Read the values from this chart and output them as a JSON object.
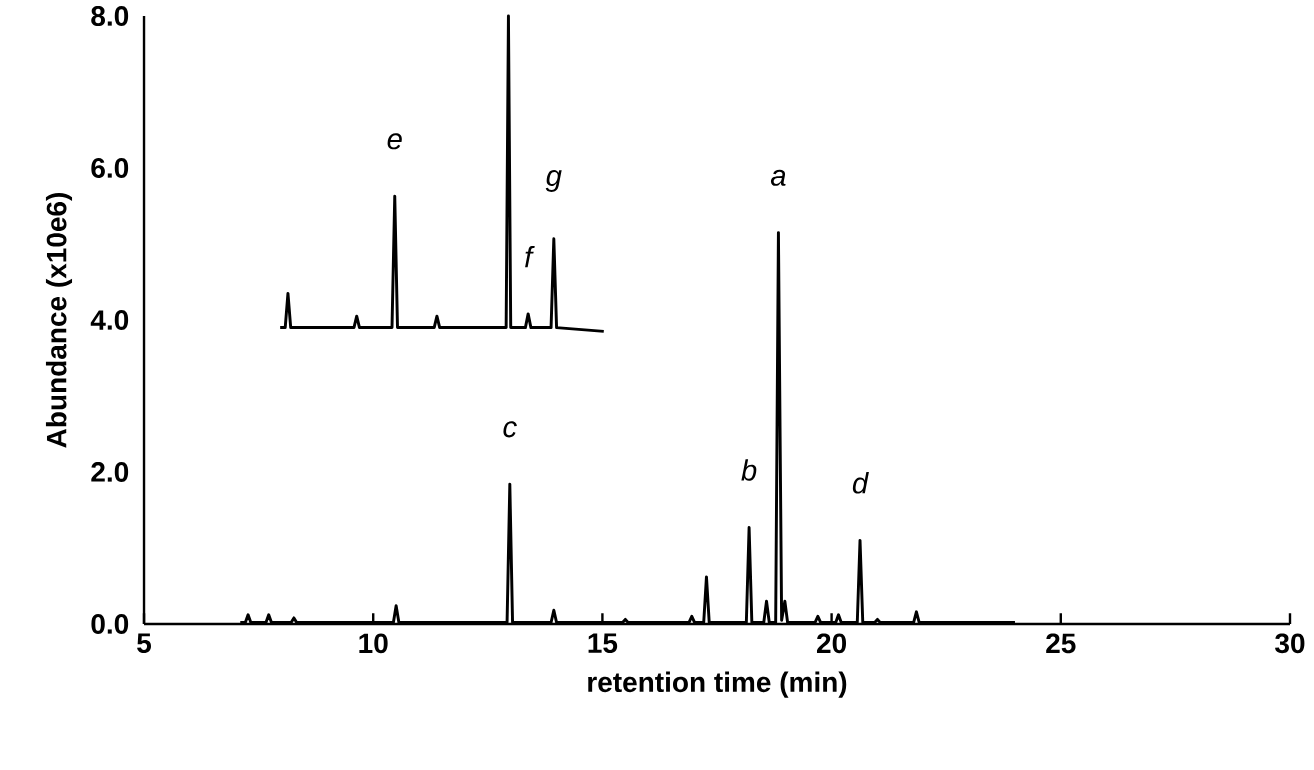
{
  "chart_data": {
    "type": "line",
    "xlabel": "retention time (min)",
    "ylabel": "Abundance (x10e6)",
    "xlim": [
      5,
      30
    ],
    "xticks": [
      5,
      10,
      15,
      20,
      25,
      30
    ],
    "ylim": [
      0,
      8
    ],
    "yticks": [
      {
        "value": 0,
        "label": "0.0"
      },
      {
        "value": 2,
        "label": "2.0"
      },
      {
        "value": 4,
        "label": "4.0"
      },
      {
        "value": 6,
        "label": "6.0"
      },
      {
        "value": 8,
        "label": "8.0"
      }
    ],
    "series": [
      {
        "color": "#000000",
        "x": [
          7.1,
          7.21,
          7.27,
          7.33,
          7.66,
          7.72,
          7.78,
          8.21,
          8.27,
          8.33,
          10.44,
          10.5,
          10.56,
          12.92,
          12.98,
          13.04,
          13.88,
          13.94,
          14.0,
          15.44,
          15.5,
          15.56,
          16.89,
          16.95,
          17.01,
          17.21,
          17.27,
          17.33,
          18.14,
          18.2,
          18.26,
          18.52,
          18.58,
          18.64,
          18.78,
          18.84,
          18.91,
          18.98,
          19.04,
          19.64,
          19.7,
          19.76,
          20.09,
          20.15,
          20.21,
          20.56,
          20.62,
          20.68,
          20.94,
          21.0,
          21.06,
          21.79,
          21.85,
          21.91,
          24.0
        ],
        "values": [
          0.02,
          0.02,
          0.12,
          0.02,
          0.02,
          0.12,
          0.02,
          0.02,
          0.08,
          0.02,
          0.02,
          0.24,
          0.02,
          0.02,
          1.84,
          0.02,
          0.02,
          0.18,
          0.02,
          0.02,
          0.06,
          0.02,
          0.02,
          0.1,
          0.02,
          0.02,
          0.62,
          0.02,
          0.02,
          1.27,
          0.02,
          0.02,
          0.3,
          0.02,
          0.02,
          5.15,
          0.05,
          0.3,
          0.02,
          0.02,
          0.1,
          0.02,
          0.02,
          0.12,
          0.02,
          0.02,
          1.1,
          0.02,
          0.02,
          0.06,
          0.02,
          0.02,
          0.16,
          0.02,
          0.02
        ]
      },
      {
        "color": "#000000",
        "x": [
          7.97,
          8.08,
          8.14,
          8.2,
          9.58,
          9.64,
          9.7,
          10.41,
          10.47,
          10.53,
          11.33,
          11.39,
          11.45,
          12.9,
          12.95,
          13.0,
          13.32,
          13.38,
          13.44,
          13.88,
          13.94,
          14.0,
          15.03
        ],
        "values": [
          3.9,
          3.9,
          4.35,
          3.9,
          3.9,
          4.05,
          3.9,
          3.9,
          5.63,
          3.9,
          3.9,
          4.05,
          3.9,
          3.9,
          8.0,
          3.9,
          3.9,
          4.08,
          3.9,
          3.9,
          5.07,
          3.9,
          3.85
        ]
      }
    ],
    "annotations": [
      {
        "text": "a",
        "x": 18.84,
        "y": 5.15
      },
      {
        "text": "b",
        "x": 18.2,
        "y": 1.27
      },
      {
        "text": "c",
        "x": 12.98,
        "y": 1.84
      },
      {
        "text": "d",
        "x": 20.62,
        "y": 1.1
      },
      {
        "text": "e",
        "x": 10.47,
        "y": 5.63
      },
      {
        "text": "f",
        "x": 13.38,
        "y": 4.08
      },
      {
        "text": "g",
        "x": 13.94,
        "y": 5.07
      }
    ]
  }
}
